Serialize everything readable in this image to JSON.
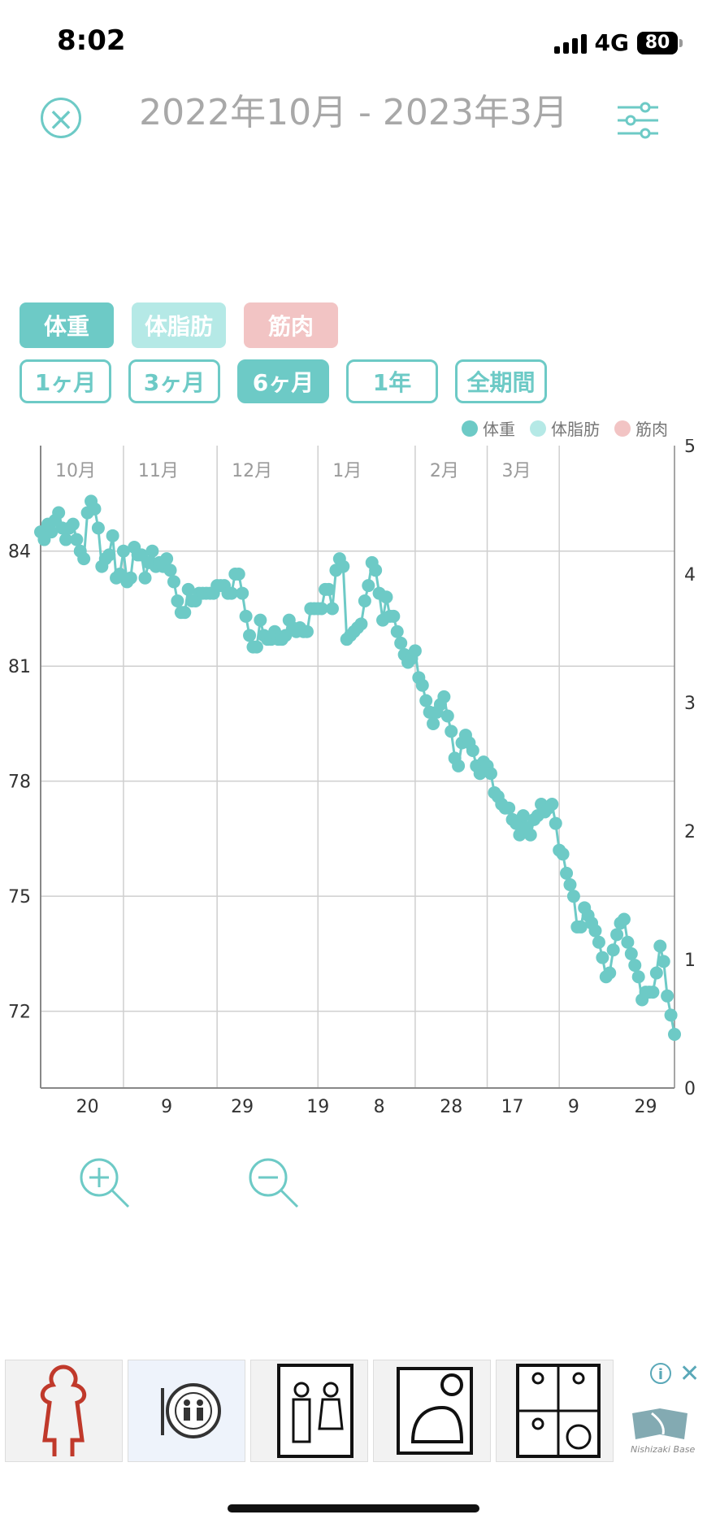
{
  "status": {
    "time": "8:02",
    "network": "4G",
    "battery": "80"
  },
  "header": {
    "date_range": "2022年10月 - 2023年3月"
  },
  "metrics": [
    {
      "label": "体重",
      "color": "#6dcac6"
    },
    {
      "label": "体脂肪",
      "color": "#b5e9e6"
    },
    {
      "label": "筋肉",
      "color": "#f2c4c4"
    }
  ],
  "periods": [
    {
      "label": "1ヶ月",
      "active": false
    },
    {
      "label": "3ヶ月",
      "active": false
    },
    {
      "label": "6ヶ月",
      "active": true
    },
    {
      "label": "1年",
      "active": false
    },
    {
      "label": "全期間",
      "active": false
    }
  ],
  "chart_data": {
    "type": "line",
    "series": [
      {
        "name": "体重",
        "color": "#6dcac6",
        "axis": "left",
        "points": [
          [
            0,
            84.5
          ],
          [
            1,
            84.3
          ],
          [
            2,
            84.7
          ],
          [
            3,
            84.5
          ],
          [
            4,
            84.8
          ],
          [
            5,
            85
          ],
          [
            6,
            84.6
          ],
          [
            7,
            84.3
          ],
          [
            8,
            84.6
          ],
          [
            9,
            84.7
          ],
          [
            10,
            84.3
          ],
          [
            11,
            84
          ],
          [
            12,
            83.8
          ],
          [
            13,
            85
          ],
          [
            14,
            85.3
          ],
          [
            15,
            85.1
          ],
          [
            16,
            84.6
          ],
          [
            17,
            83.6
          ],
          [
            18,
            83.8
          ],
          [
            19,
            83.9
          ],
          [
            20,
            84.4
          ],
          [
            21,
            83.3
          ],
          [
            22,
            83.4
          ],
          [
            23,
            84
          ],
          [
            24,
            83.2
          ],
          [
            25,
            83.3
          ],
          [
            26,
            84.1
          ],
          [
            27,
            83.9
          ],
          [
            28,
            83.9
          ],
          [
            29,
            83.3
          ],
          [
            30,
            83.7
          ],
          [
            31,
            84
          ],
          [
            32,
            83.6
          ],
          [
            33,
            83.7
          ],
          [
            34,
            83.6
          ],
          [
            35,
            83.8
          ],
          [
            36,
            83.5
          ],
          [
            37,
            83.2
          ],
          [
            38,
            82.7
          ],
          [
            39,
            82.4
          ],
          [
            40,
            82.4
          ],
          [
            41,
            83
          ],
          [
            42,
            82.7
          ],
          [
            43,
            82.7
          ],
          [
            44,
            82.9
          ],
          [
            45,
            82.9
          ],
          [
            46,
            82.9
          ],
          [
            47,
            82.9
          ],
          [
            48,
            82.9
          ],
          [
            49,
            83.1
          ],
          [
            50,
            83.1
          ],
          [
            51,
            83.1
          ],
          [
            52,
            82.9
          ],
          [
            53,
            82.9
          ],
          [
            54,
            83.4
          ],
          [
            55,
            83.4
          ],
          [
            56,
            82.9
          ],
          [
            57,
            82.3
          ],
          [
            58,
            81.8
          ],
          [
            59,
            81.5
          ],
          [
            60,
            81.5
          ],
          [
            61,
            82.2
          ],
          [
            62,
            81.8
          ],
          [
            63,
            81.7
          ],
          [
            64,
            81.7
          ],
          [
            65,
            81.9
          ],
          [
            66,
            81.7
          ],
          [
            67,
            81.7
          ],
          [
            68,
            81.8
          ],
          [
            69,
            82.2
          ],
          [
            70,
            82
          ],
          [
            71,
            81.9
          ],
          [
            72,
            82
          ],
          [
            73,
            81.9
          ],
          [
            74,
            81.9
          ],
          [
            75,
            82.5
          ],
          [
            76,
            82.5
          ],
          [
            77,
            82.5
          ],
          [
            78,
            82.5
          ],
          [
            79,
            83
          ],
          [
            80,
            83
          ],
          [
            81,
            82.5
          ],
          [
            82,
            83.5
          ],
          [
            83,
            83.8
          ],
          [
            84,
            83.6
          ],
          [
            85,
            81.7
          ],
          [
            86,
            81.8
          ],
          [
            87,
            81.9
          ],
          [
            88,
            82
          ],
          [
            89,
            82.1
          ],
          [
            90,
            82.7
          ],
          [
            91,
            83.1
          ],
          [
            92,
            83.7
          ],
          [
            93,
            83.5
          ],
          [
            94,
            82.9
          ],
          [
            95,
            82.2
          ],
          [
            96,
            82.8
          ],
          [
            97,
            82.3
          ],
          [
            98,
            82.3
          ],
          [
            99,
            81.9
          ],
          [
            100,
            81.6
          ],
          [
            101,
            81.3
          ],
          [
            102,
            81.1
          ],
          [
            103,
            81.2
          ],
          [
            104,
            81.4
          ],
          [
            105,
            80.7
          ],
          [
            106,
            80.5
          ],
          [
            107,
            80.1
          ],
          [
            108,
            79.8
          ],
          [
            109,
            79.5
          ],
          [
            110,
            79.8
          ],
          [
            111,
            80
          ],
          [
            112,
            80.2
          ],
          [
            113,
            79.7
          ],
          [
            114,
            79.3
          ],
          [
            115,
            78.6
          ],
          [
            116,
            78.4
          ],
          [
            117,
            79
          ],
          [
            118,
            79.2
          ],
          [
            119,
            79
          ],
          [
            120,
            78.8
          ],
          [
            121,
            78.4
          ],
          [
            122,
            78.2
          ],
          [
            123,
            78.5
          ],
          [
            124,
            78.4
          ],
          [
            125,
            78.2
          ],
          [
            126,
            77.7
          ],
          [
            127,
            77.6
          ],
          [
            128,
            77.4
          ],
          [
            129,
            77.3
          ],
          [
            130,
            77.3
          ],
          [
            131,
            77
          ],
          [
            132,
            76.9
          ],
          [
            133,
            76.6
          ],
          [
            134,
            77.1
          ],
          [
            135,
            76.8
          ],
          [
            136,
            76.6
          ],
          [
            137,
            77
          ],
          [
            138,
            77.1
          ],
          [
            139,
            77.4
          ],
          [
            140,
            77.2
          ],
          [
            141,
            77.3
          ],
          [
            142,
            77.4
          ],
          [
            143,
            76.9
          ],
          [
            144,
            76.2
          ],
          [
            145,
            76.1
          ],
          [
            146,
            75.6
          ],
          [
            147,
            75.3
          ],
          [
            148,
            75
          ],
          [
            149,
            74.2
          ],
          [
            150,
            74.2
          ],
          [
            151,
            74.7
          ],
          [
            152,
            74.5
          ],
          [
            153,
            74.3
          ],
          [
            154,
            74.1
          ],
          [
            155,
            73.8
          ],
          [
            156,
            73.4
          ],
          [
            157,
            72.9
          ],
          [
            158,
            73
          ],
          [
            159,
            73.6
          ],
          [
            160,
            74
          ],
          [
            161,
            74.3
          ],
          [
            162,
            74.4
          ],
          [
            163,
            73.8
          ],
          [
            164,
            73.5
          ],
          [
            165,
            73.2
          ],
          [
            166,
            72.9
          ],
          [
            167,
            72.3
          ],
          [
            168,
            72.5
          ],
          [
            169,
            72.5
          ],
          [
            170,
            72.5
          ],
          [
            171,
            73
          ],
          [
            172,
            73.7
          ],
          [
            173,
            73.3
          ],
          [
            174,
            72.4
          ],
          [
            175,
            71.9
          ],
          [
            176,
            71.4
          ]
        ]
      }
    ],
    "x_labels": [
      "20",
      "9",
      "29",
      "19",
      "8",
      "28",
      "17",
      "9",
      "29"
    ],
    "month_labels": [
      "10月",
      "11月",
      "12月",
      "1月",
      "2月",
      "3月"
    ],
    "left_axis": {
      "ticks": [
        "84",
        "81",
        "78",
        "75",
        "72"
      ]
    },
    "right_axis": {
      "ticks": [
        "5",
        "4",
        "3",
        "2",
        "1",
        "0"
      ]
    }
  },
  "ad": {
    "info": "i",
    "close": "✕",
    "brand": "Nishizaki Base"
  }
}
